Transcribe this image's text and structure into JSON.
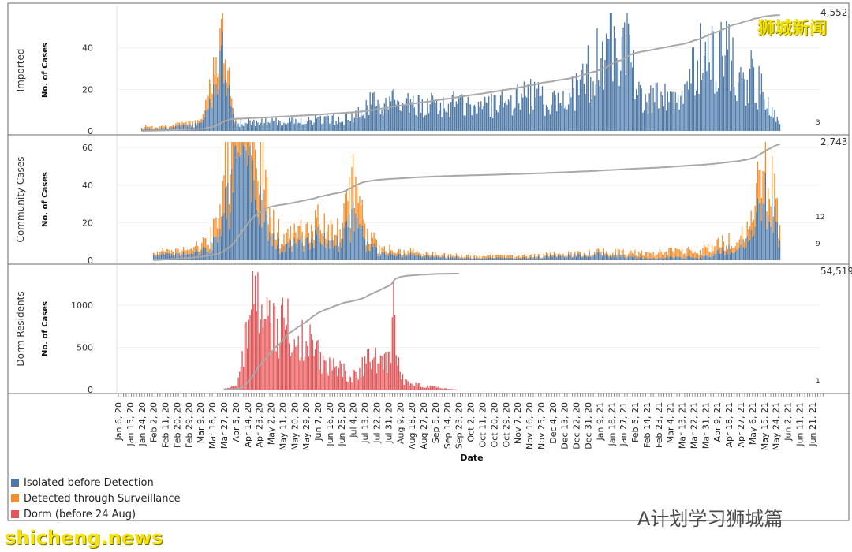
{
  "colors": {
    "isolated": "#4e79a7",
    "surveillance": "#f28e2b",
    "dorm": "#e15759",
    "cumulative": "#a8a8a8"
  },
  "chart_data": {
    "type": "bar",
    "xlabel": "Date",
    "x_ticks": [
      "Jan 6, 20",
      "Jan 15, 20",
      "Jan 24, 20",
      "Feb 2, 20",
      "Feb 11, 20",
      "Feb 20, 20",
      "Feb 29, 20",
      "Mar 9, 20",
      "Mar 18, 20",
      "Mar 27, 20",
      "Apr 5, 20",
      "Apr 14, 20",
      "Apr 23, 20",
      "May 2, 20",
      "May 11, 20",
      "May 20, 20",
      "May 29, 20",
      "Jun 7, 20",
      "Jun 16, 20",
      "Jun 25, 20",
      "Jul 4, 20",
      "Jul 13, 20",
      "Jul 22, 20",
      "Jul 31, 20",
      "Aug 9, 20",
      "Aug 18, 20",
      "Aug 27, 20",
      "Sep 5, 20",
      "Sep 14, 20",
      "Sep 23, 20",
      "Oct 2, 20",
      "Oct 11, 20",
      "Oct 20, 20",
      "Oct 29, 20",
      "Nov 7, 20",
      "Nov 16, 20",
      "Nov 25, 20",
      "Dec 4, 20",
      "Dec 13, 20",
      "Dec 22, 20",
      "Dec 31, 20",
      "Jan 9, 21",
      "Jan 18, 21",
      "Jan 27, 21",
      "Feb 5, 21",
      "Feb 14, 21",
      "Feb 23, 21",
      "Mar 4, 21",
      "Mar 13, 21",
      "Mar 22, 21",
      "Mar 31, 21",
      "Apr 9, 21",
      "Apr 18, 21",
      "Apr 27, 21",
      "May 6, 21",
      "May 15, 21",
      "May 24, 21",
      "Jun 2, 21",
      "Jun 11, 21",
      "Jun 21, 21"
    ],
    "legend": [
      "Isolated before Detection",
      "Detected through Surveillance",
      "Dorm (before 24 Aug)"
    ],
    "panels": [
      {
        "name": "Imported",
        "ylabel": "No. of Cases",
        "ylim": [
          0,
          57
        ],
        "yticks": [
          0,
          20,
          40
        ],
        "cum_max": 4552,
        "cum_label": "4,552",
        "last_value_labels": [
          "3"
        ],
        "series": [
          {
            "name": "Isolated before Detection",
            "color_key": "isolated",
            "points": [
              [
                "Jan 24, 20",
                1
              ],
              [
                "Feb 2, 20",
                1
              ],
              [
                "Mar 9, 20",
                3
              ],
              [
                "Mar 18, 20",
                15
              ],
              [
                "Mar 23, 20",
                40
              ],
              [
                "Mar 24, 20",
                48
              ],
              [
                "Mar 27, 20",
                25
              ],
              [
                "Apr 5, 20",
                4
              ],
              [
                "Jul 4, 20",
                6
              ],
              [
                "Jul 22, 20",
                15
              ],
              [
                "Aug 18, 20",
                12
              ],
              [
                "Sep 14, 20",
                13
              ],
              [
                "Oct 20, 20",
                13
              ],
              [
                "Nov 16, 20",
                17
              ],
              [
                "Dec 13, 20",
                13
              ],
              [
                "Dec 22, 20",
                20
              ],
              [
                "Dec 31, 20",
                28
              ],
              [
                "Jan 9, 21",
                35
              ],
              [
                "Jan 18, 21",
                45
              ],
              [
                "Jan 27, 21",
                48
              ],
              [
                "Jan 29, 21",
                55
              ],
              [
                "Feb 5, 21",
                25
              ],
              [
                "Feb 14, 21",
                13
              ],
              [
                "Feb 23, 21",
                18
              ],
              [
                "Mar 13, 21",
                18
              ],
              [
                "Mar 22, 21",
                30
              ],
              [
                "Mar 31, 21",
                40
              ],
              [
                "Apr 9, 21",
                35
              ],
              [
                "Apr 18, 21",
                38
              ],
              [
                "Apr 27, 21",
                25
              ],
              [
                "May 6, 21",
                27
              ],
              [
                "May 15, 21",
                16
              ],
              [
                "May 24, 21",
                6
              ],
              [
                "May 27, 21",
                3
              ]
            ]
          },
          {
            "name": "Detected through Surveillance",
            "color_key": "surveillance",
            "points": [
              [
                "Jan 24, 20",
                1
              ],
              [
                "Mar 9, 20",
                1
              ],
              [
                "Mar 18, 20",
                9
              ],
              [
                "Mar 21, 20",
                17
              ],
              [
                "Mar 27, 20",
                10
              ],
              [
                "Apr 5, 20",
                1
              ]
            ]
          }
        ]
      },
      {
        "name": "Community Cases",
        "ylabel": "No. of Cases",
        "ylim": [
          0,
          63
        ],
        "yticks": [
          0,
          20,
          40,
          60
        ],
        "cum_max": 2743,
        "cum_label": "2,743",
        "last_value_labels": [
          "12",
          "9"
        ],
        "series": [
          {
            "name": "Isolated before Detection",
            "color_key": "isolated",
            "points": [
              [
                "Feb 2, 20",
                2
              ],
              [
                "Feb 11, 20",
                4
              ],
              [
                "Feb 20, 20",
                3
              ],
              [
                "Mar 9, 20",
                4
              ],
              [
                "Mar 18, 20",
                8
              ],
              [
                "Mar 27, 20",
                25
              ],
              [
                "Apr 5, 20",
                45
              ],
              [
                "Apr 9, 20",
                65
              ],
              [
                "Apr 14, 20",
                50
              ],
              [
                "Apr 23, 20",
                30
              ],
              [
                "May 2, 20",
                12
              ],
              [
                "May 11, 20",
                6
              ],
              [
                "May 20, 20",
                8
              ],
              [
                "Jun 7, 20",
                12
              ],
              [
                "Jun 16, 20",
                8
              ],
              [
                "Jun 25, 20",
                10
              ],
              [
                "Jul 4, 20",
                22
              ],
              [
                "Jul 13, 20",
                10
              ],
              [
                "Jul 22, 20",
                5
              ],
              [
                "Aug 9, 20",
                3
              ],
              [
                "Sep 5, 20",
                2
              ],
              [
                "Oct 2, 20",
                1
              ],
              [
                "Nov 7, 20",
                1
              ],
              [
                "Dec 31, 20",
                3
              ],
              [
                "Jan 18, 21",
                3
              ],
              [
                "Feb 14, 21",
                1
              ],
              [
                "Mar 31, 21",
                2
              ],
              [
                "Apr 27, 21",
                8
              ],
              [
                "May 6, 21",
                14
              ],
              [
                "May 15, 21",
                35
              ],
              [
                "May 20, 21",
                30
              ],
              [
                "May 24, 21",
                20
              ],
              [
                "May 27, 21",
                12
              ]
            ]
          },
          {
            "name": "Detected through Surveillance",
            "color_key": "surveillance",
            "points": [
              [
                "Feb 2, 20",
                1
              ],
              [
                "Feb 11, 20",
                2
              ],
              [
                "Feb 20, 20",
                2
              ],
              [
                "Mar 9, 20",
                3
              ],
              [
                "Mar 18, 20",
                6
              ],
              [
                "Mar 27, 20",
                20
              ],
              [
                "Apr 5, 20",
                35
              ],
              [
                "Apr 9, 20",
                45
              ],
              [
                "Apr 14, 20",
                40
              ],
              [
                "Apr 23, 20",
                25
              ],
              [
                "May 2, 20",
                10
              ],
              [
                "May 11, 20",
                5
              ],
              [
                "May 20, 20",
                5
              ],
              [
                "Jun 7, 20",
                8
              ],
              [
                "Jun 16, 20",
                6
              ],
              [
                "Jun 25, 20",
                7
              ],
              [
                "Jul 4, 20",
                18
              ],
              [
                "Jul 13, 20",
                7
              ],
              [
                "Jul 22, 20",
                3
              ],
              [
                "Aug 9, 20",
                2
              ],
              [
                "Sep 5, 20",
                1
              ],
              [
                "Dec 31, 20",
                1
              ],
              [
                "Apr 27, 21",
                5
              ],
              [
                "May 6, 21",
                9
              ],
              [
                "May 15, 21",
                20
              ],
              [
                "May 20, 21",
                18
              ],
              [
                "May 24, 21",
                12
              ],
              [
                "May 27, 21",
                9
              ]
            ]
          }
        ]
      },
      {
        "name": "Dorm Residents",
        "ylabel": "No. of Cases",
        "ylim": [
          0,
          1400
        ],
        "yticks": [
          0,
          500,
          1000
        ],
        "cum_max": 54519,
        "cum_label": "54,519",
        "last_value_labels": [
          "1"
        ],
        "series": [
          {
            "name": "Dorm (before 24 Aug)",
            "color_key": "dorm",
            "points": [
              [
                "Mar 27, 20",
                5
              ],
              [
                "Apr 5, 20",
                60
              ],
              [
                "Apr 9, 20",
                250
              ],
              [
                "Apr 14, 20",
                700
              ],
              [
                "Apr 18, 20",
                1000
              ],
              [
                "Apr 20, 20",
                1426
              ],
              [
                "Apr 23, 20",
                900
              ],
              [
                "May 2, 20",
                750
              ],
              [
                "May 11, 20",
                850
              ],
              [
                "May 20, 20",
                650
              ],
              [
                "May 29, 20",
                550
              ],
              [
                "Jun 7, 20",
                450
              ],
              [
                "Jun 16, 20",
                300
              ],
              [
                "Jun 25, 20",
                220
              ],
              [
                "Jul 4, 20",
                180
              ],
              [
                "Jul 13, 20",
                300
              ],
              [
                "Jul 22, 20",
                420
              ],
              [
                "Jul 31, 20",
                300
              ],
              [
                "Aug 4, 20",
                880
              ],
              [
                "Aug 9, 20",
                150
              ],
              [
                "Aug 18, 20",
                80
              ],
              [
                "Aug 27, 20",
                40
              ],
              [
                "Sep 5, 20",
                30
              ],
              [
                "Sep 14, 20",
                10
              ],
              [
                "Sep 23, 20",
                0
              ]
            ]
          }
        ]
      }
    ]
  },
  "watermarks": {
    "top_right": "狮城新闻",
    "bottom_right": "A计划学习狮城篇",
    "bottom_left": "shicheng.news"
  }
}
